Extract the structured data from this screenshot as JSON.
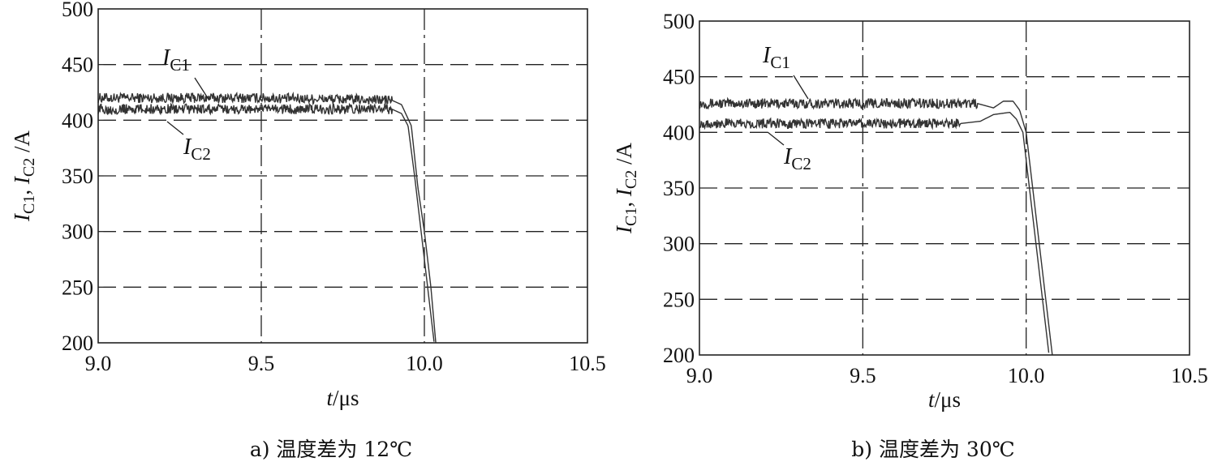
{
  "chart_data": [
    {
      "type": "line",
      "id": "a",
      "caption": "a) 温度差为 12℃",
      "xlabel": "t/μs",
      "ylabel": "IC1, IC2/A",
      "xlim": [
        9.0,
        10.5
      ],
      "ylim": [
        200,
        500
      ],
      "xticks": [
        "9.0",
        "9.5",
        "10.0",
        "10.5"
      ],
      "yticks": [
        "500",
        "450",
        "400",
        "350",
        "300",
        "250",
        "200"
      ],
      "series": [
        {
          "name": "IC1",
          "label_main": "I",
          "label_sub": "C1",
          "x": [
            9.0,
            9.5,
            9.9,
            9.93,
            9.96,
            9.98,
            10.0,
            10.02,
            10.035
          ],
          "y": [
            420,
            420,
            418,
            414,
            395,
            340,
            300,
            250,
            200
          ]
        },
        {
          "name": "IC2",
          "label_main": "I",
          "label_sub": "C2",
          "x": [
            9.0,
            9.5,
            9.9,
            9.93,
            9.95,
            9.97,
            9.99,
            10.01,
            10.03
          ],
          "y": [
            410,
            410,
            410,
            406,
            395,
            350,
            300,
            250,
            200
          ]
        }
      ]
    },
    {
      "type": "line",
      "id": "b",
      "caption": "b) 温度差为 30℃",
      "xlabel": "t/μs",
      "ylabel": "IC1, IC2/A",
      "xlim": [
        9.0,
        10.5
      ],
      "ylim": [
        200,
        500
      ],
      "xticks": [
        "9.0",
        "9.5",
        "10.0",
        "10.5"
      ],
      "yticks": [
        "500",
        "450",
        "400",
        "350",
        "300",
        "250",
        "200"
      ],
      "series": [
        {
          "name": "IC1",
          "label_main": "I",
          "label_sub": "C1",
          "x": [
            9.0,
            9.5,
            9.85,
            9.9,
            9.93,
            9.96,
            9.98,
            10.0,
            10.02,
            10.04,
            10.06,
            10.08
          ],
          "y": [
            426,
            426,
            426,
            422,
            428,
            428,
            420,
            400,
            350,
            300,
            250,
            200
          ]
        },
        {
          "name": "IC2",
          "label_main": "I",
          "label_sub": "C2",
          "x": [
            9.0,
            9.5,
            9.8,
            9.86,
            9.9,
            9.95,
            9.97,
            9.99,
            10.01,
            10.03,
            10.05,
            10.07
          ],
          "y": [
            408,
            408,
            408,
            410,
            416,
            418,
            412,
            400,
            350,
            300,
            250,
            200
          ]
        }
      ]
    }
  ]
}
